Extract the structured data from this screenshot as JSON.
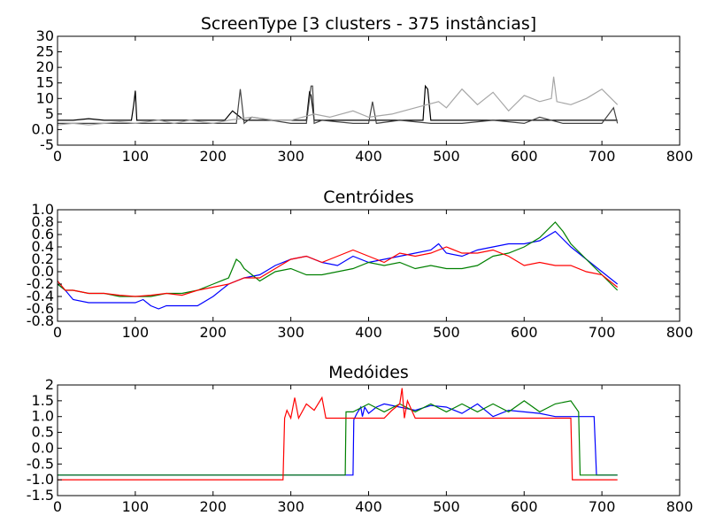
{
  "chart_data": [
    {
      "type": "line",
      "title": "ScreenType [3 clusters - 375 instâncias]",
      "xlabel": "",
      "ylabel": "",
      "xlim": [
        0,
        800
      ],
      "ylim": [
        -5,
        30
      ],
      "xticks": [
        0,
        100,
        200,
        300,
        400,
        500,
        600,
        700,
        800
      ],
      "yticks": [
        -5,
        0,
        5,
        10,
        15,
        20,
        25,
        30
      ],
      "grid": false,
      "series_description_colors": [
        "#000000",
        "#444444",
        "#a6a6a6"
      ],
      "series": [
        {
          "color": "#000000",
          "x": [
            0,
            20,
            40,
            60,
            80,
            95,
            98,
            100,
            102,
            105,
            130,
            160,
            200,
            215,
            225,
            235,
            240,
            260,
            300,
            320,
            324,
            326,
            330,
            360,
            400,
            420,
            440,
            460,
            470,
            473,
            476,
            480,
            500,
            540,
            580,
            620,
            650,
            700,
            720
          ],
          "y": [
            3,
            3,
            3.5,
            3,
            3,
            3,
            8,
            12.5,
            3,
            3,
            3,
            3,
            3,
            3,
            6,
            4,
            3,
            3,
            3,
            3,
            12,
            11,
            3,
            3,
            3,
            3,
            3,
            3,
            3,
            14,
            13,
            3,
            3,
            3,
            3,
            3,
            3,
            3,
            3
          ]
        },
        {
          "color": "#444444",
          "x": [
            0,
            40,
            80,
            120,
            160,
            200,
            230,
            235,
            240,
            250,
            300,
            320,
            326,
            328,
            330,
            340,
            380,
            400,
            405,
            410,
            440,
            480,
            520,
            560,
            600,
            620,
            650,
            680,
            700,
            715,
            720
          ],
          "y": [
            2,
            2,
            2,
            2,
            2,
            2,
            2,
            13,
            2,
            4,
            2,
            2,
            14,
            14,
            2,
            3,
            2,
            2,
            9,
            2,
            3,
            2,
            2,
            3,
            2,
            4,
            2,
            2,
            2,
            7,
            2
          ]
        },
        {
          "color": "#a6a6a6",
          "x": [
            0,
            20,
            40,
            60,
            80,
            100,
            130,
            150,
            170,
            200,
            220,
            250,
            280,
            300,
            330,
            350,
            380,
            400,
            430,
            460,
            490,
            500,
            520,
            540,
            560,
            580,
            600,
            620,
            635,
            638,
            642,
            660,
            680,
            700,
            720
          ],
          "y": [
            1.5,
            2,
            1.5,
            2,
            2.5,
            2,
            3,
            2,
            3,
            2,
            3,
            4,
            3,
            3,
            5,
            4,
            6,
            4,
            5,
            7,
            9,
            7,
            13,
            8,
            12,
            6,
            11,
            9,
            10,
            17,
            9,
            8,
            10,
            13,
            8
          ]
        }
      ]
    },
    {
      "type": "line",
      "title": "Centróides",
      "xlabel": "",
      "ylabel": "",
      "xlim": [
        0,
        800
      ],
      "ylim": [
        -0.8,
        1.0
      ],
      "xticks": [
        0,
        100,
        200,
        300,
        400,
        500,
        600,
        700,
        800
      ],
      "yticks": [
        -0.8,
        -0.6,
        -0.4,
        -0.2,
        0.0,
        0.2,
        0.4,
        0.6,
        0.8,
        1.0
      ],
      "grid": false,
      "series": [
        {
          "color": "#0000ff",
          "x": [
            0,
            10,
            20,
            40,
            60,
            80,
            100,
            110,
            120,
            130,
            140,
            160,
            180,
            200,
            220,
            240,
            260,
            280,
            300,
            320,
            340,
            360,
            380,
            400,
            420,
            440,
            460,
            480,
            490,
            500,
            520,
            540,
            560,
            580,
            600,
            620,
            640,
            660,
            680,
            700,
            720
          ],
          "y": [
            -0.2,
            -0.3,
            -0.45,
            -0.5,
            -0.5,
            -0.5,
            -0.5,
            -0.45,
            -0.55,
            -0.6,
            -0.55,
            -0.55,
            -0.55,
            -0.4,
            -0.2,
            -0.1,
            -0.05,
            0.1,
            0.2,
            0.25,
            0.15,
            0.1,
            0.25,
            0.15,
            0.2,
            0.25,
            0.3,
            0.35,
            0.45,
            0.3,
            0.25,
            0.35,
            0.4,
            0.45,
            0.45,
            0.5,
            0.65,
            0.4,
            0.2,
            0.0,
            -0.2
          ]
        },
        {
          "color": "#008000",
          "x": [
            0,
            10,
            20,
            40,
            60,
            80,
            100,
            120,
            140,
            160,
            180,
            200,
            220,
            230,
            235,
            240,
            260,
            280,
            300,
            320,
            340,
            360,
            380,
            400,
            420,
            440,
            460,
            480,
            500,
            520,
            540,
            560,
            580,
            600,
            620,
            640,
            650,
            660,
            680,
            700,
            720
          ],
          "y": [
            -0.2,
            -0.3,
            -0.3,
            -0.35,
            -0.35,
            -0.4,
            -0.4,
            -0.4,
            -0.35,
            -0.35,
            -0.3,
            -0.2,
            -0.1,
            0.2,
            0.15,
            0.05,
            -0.15,
            0.0,
            0.05,
            -0.05,
            -0.05,
            0.0,
            0.05,
            0.15,
            0.1,
            0.15,
            0.05,
            0.1,
            0.05,
            0.05,
            0.1,
            0.25,
            0.3,
            0.4,
            0.55,
            0.8,
            0.65,
            0.45,
            0.2,
            -0.05,
            -0.3
          ]
        },
        {
          "color": "#ff0000",
          "x": [
            0,
            10,
            20,
            40,
            60,
            80,
            100,
            120,
            140,
            160,
            180,
            200,
            220,
            240,
            260,
            280,
            300,
            320,
            340,
            360,
            380,
            400,
            420,
            440,
            460,
            480,
            500,
            520,
            540,
            560,
            580,
            600,
            620,
            640,
            660,
            680,
            700,
            720
          ],
          "y": [
            -0.15,
            -0.3,
            -0.3,
            -0.35,
            -0.35,
            -0.38,
            -0.4,
            -0.38,
            -0.35,
            -0.38,
            -0.3,
            -0.25,
            -0.2,
            -0.1,
            -0.1,
            0.05,
            0.2,
            0.25,
            0.15,
            0.25,
            0.35,
            0.25,
            0.15,
            0.3,
            0.25,
            0.3,
            0.4,
            0.3,
            0.3,
            0.35,
            0.25,
            0.1,
            0.15,
            0.1,
            0.1,
            0.0,
            -0.05,
            -0.25
          ]
        }
      ]
    },
    {
      "type": "line",
      "title": "Medóides",
      "xlabel": "",
      "ylabel": "",
      "xlim": [
        0,
        800
      ],
      "ylim": [
        -1.5,
        2.0
      ],
      "xticks": [
        0,
        100,
        200,
        300,
        400,
        500,
        600,
        700,
        800
      ],
      "yticks": [
        -1.5,
        -1.0,
        -0.5,
        0.0,
        0.5,
        1.0,
        1.5,
        2.0
      ],
      "grid": false,
      "series": [
        {
          "color": "#0000ff",
          "x": [
            0,
            380,
            381,
            385,
            390,
            392,
            395,
            400,
            410,
            420,
            440,
            460,
            480,
            500,
            520,
            540,
            560,
            580,
            600,
            620,
            640,
            660,
            680,
            690,
            693,
            720
          ],
          "y": [
            -0.85,
            -0.85,
            0.9,
            1.1,
            1.3,
            1.0,
            1.3,
            1.1,
            1.3,
            1.4,
            1.3,
            1.2,
            1.35,
            1.3,
            1.1,
            1.4,
            1.0,
            1.2,
            1.15,
            1.1,
            1.0,
            1.0,
            1.0,
            1.0,
            -0.85,
            -0.85
          ]
        },
        {
          "color": "#008000",
          "x": [
            0,
            370,
            371,
            380,
            400,
            420,
            440,
            460,
            480,
            500,
            520,
            540,
            560,
            580,
            600,
            620,
            640,
            660,
            670,
            672,
            720
          ],
          "y": [
            -0.85,
            -0.85,
            1.15,
            1.15,
            1.4,
            1.15,
            1.4,
            1.15,
            1.4,
            1.15,
            1.4,
            1.15,
            1.4,
            1.15,
            1.5,
            1.15,
            1.4,
            1.5,
            1.15,
            -0.85,
            -0.85
          ]
        },
        {
          "color": "#ff0000",
          "x": [
            0,
            290,
            292,
            295,
            300,
            305,
            310,
            320,
            330,
            340,
            345,
            350,
            360,
            380,
            400,
            420,
            430,
            440,
            443,
            446,
            450,
            460,
            480,
            500,
            520,
            540,
            560,
            580,
            600,
            620,
            650,
            660,
            662,
            720
          ],
          "y": [
            -1.0,
            -1.0,
            0.95,
            1.2,
            0.95,
            1.6,
            0.95,
            1.4,
            1.2,
            1.6,
            0.95,
            0.95,
            0.95,
            0.95,
            0.95,
            0.95,
            1.2,
            1.4,
            1.9,
            0.95,
            1.5,
            0.95,
            0.95,
            0.95,
            0.95,
            0.95,
            0.95,
            0.95,
            0.95,
            0.95,
            0.95,
            0.95,
            -1.0,
            -1.0
          ]
        }
      ]
    }
  ]
}
